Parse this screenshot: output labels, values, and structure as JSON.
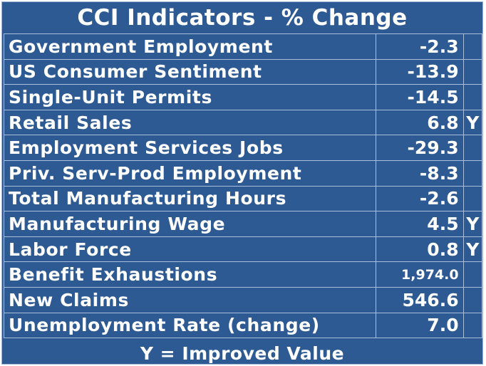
{
  "chart_data": {
    "type": "table",
    "title": "CCI Indicators - % Change",
    "rows": [
      {
        "label": "Government Employment",
        "value": "-2.3",
        "flag": ""
      },
      {
        "label": "US Consumer Sentiment",
        "value": "-13.9",
        "flag": ""
      },
      {
        "label": "Single-Unit Permits",
        "value": "-14.5",
        "flag": ""
      },
      {
        "label": "Retail Sales",
        "value": "6.8",
        "flag": "Y"
      },
      {
        "label": "Employment Services Jobs",
        "value": "-29.3",
        "flag": ""
      },
      {
        "label": "Priv. Serv-Prod Employment",
        "value": "-8.3",
        "flag": ""
      },
      {
        "label": "Total Manufacturing Hours",
        "value": "-2.6",
        "flag": ""
      },
      {
        "label": "Manufacturing Wage",
        "value": "4.5",
        "flag": "Y"
      },
      {
        "label": "Labor Force",
        "value": "0.8",
        "flag": "Y"
      },
      {
        "label": "Benefit Exhaustions",
        "value": "1,974.0",
        "flag": ""
      },
      {
        "label": "New Claims",
        "value": "546.6",
        "flag": ""
      },
      {
        "label": "Unemployment Rate (change)",
        "value": "7.0",
        "flag": ""
      }
    ],
    "footnote": "Y = Improved Value"
  },
  "colors": {
    "background": "#2e5a93",
    "grid": "#a9bedb",
    "text": "#ffffff"
  }
}
